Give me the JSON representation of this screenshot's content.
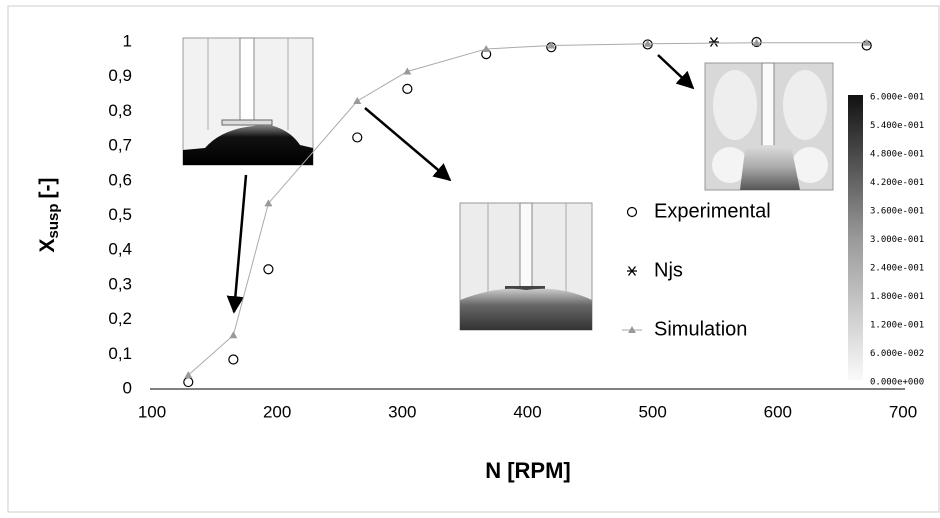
{
  "chart_data": {
    "type": "scatter-line",
    "xlabel": "N [RPM]",
    "ylabel": {
      "main": "X",
      "sub": "susp",
      "unit": "[-]"
    },
    "xlim": [
      100,
      700
    ],
    "xticks": [
      100,
      200,
      300,
      400,
      500,
      600,
      700
    ],
    "ylim": [
      0,
      1
    ],
    "yticks": [
      0,
      {
        "value": 0.1,
        "label": "0,1"
      },
      {
        "value": 0.2,
        "label": "0,2"
      },
      {
        "value": 0.3,
        "label": "0,3"
      },
      {
        "value": 0.4,
        "label": "0,4"
      },
      {
        "value": 0.5,
        "label": "0,5"
      },
      {
        "value": 0.6,
        "label": "0,6"
      },
      {
        "value": 0.7,
        "label": "0,7"
      },
      {
        "value": 0.8,
        "label": "0,8"
      },
      {
        "value": 0.9,
        "label": "0,9"
      },
      1
    ],
    "grid": false,
    "legend": "right",
    "series": [
      {
        "name": "Experimental",
        "marker": "circle",
        "color": "#000000",
        "x": [
          129,
          165,
          193,
          264,
          304,
          367,
          419,
          496,
          583,
          671
        ],
        "values": [
          0.02,
          0.085,
          0.345,
          0.725,
          0.865,
          0.965,
          0.985,
          0.993,
          1.0,
          0.99
        ]
      },
      {
        "name": "Njs",
        "marker": "star",
        "color": "#000000",
        "x": [
          549
        ],
        "values": [
          1.0
        ]
      },
      {
        "name": "Simulation",
        "marker": "triangle",
        "color": "#999999",
        "line": true,
        "x": [
          129,
          165,
          193,
          264,
          304,
          367,
          419,
          496,
          583,
          671
        ],
        "values": [
          0.04,
          0.155,
          0.535,
          0.83,
          0.915,
          0.98,
          0.99,
          0.995,
          0.998,
          0.998
        ]
      }
    ],
    "colorbar": {
      "labels": [
        "6.000e-001",
        "5.400e-001",
        "4.800e-001",
        "4.200e-001",
        "3.600e-001",
        "3.000e-001",
        "2.400e-001",
        "1.800e-001",
        "1.200e-001",
        "6.000e-002",
        "0.000e+000"
      ]
    }
  }
}
